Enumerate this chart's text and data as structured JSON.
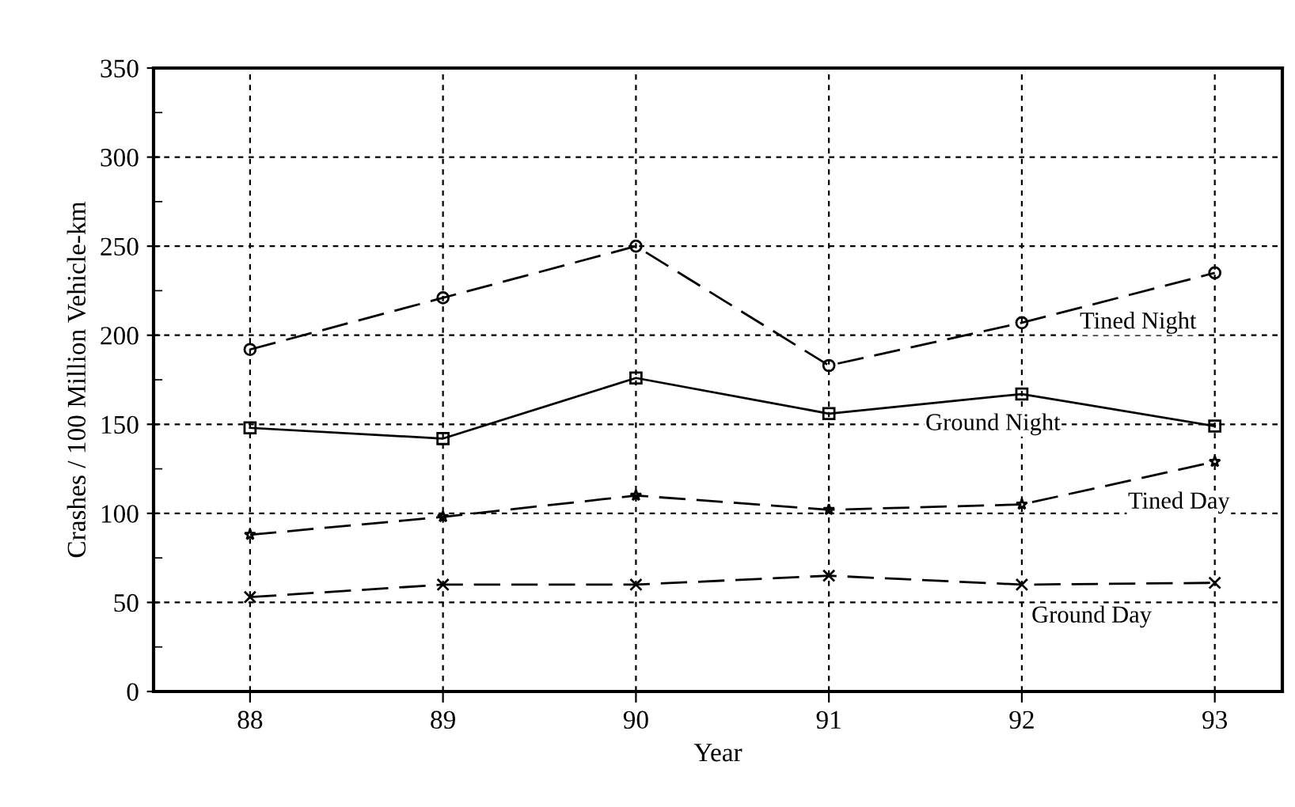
{
  "chart_data": {
    "type": "line",
    "xlabel": "Year",
    "ylabel": "Crashes / 100 Million Vehicle-km",
    "x": [
      88,
      89,
      90,
      91,
      92,
      93
    ],
    "series": [
      {
        "name": "Tined Night",
        "color": "#000000",
        "marker": "circle",
        "line_style": "dashed",
        "values": [
          192,
          221,
          250,
          183,
          207,
          235
        ]
      },
      {
        "name": "Ground Night",
        "color": "#000000",
        "marker": "square",
        "line_style": "solid",
        "values": [
          148,
          142,
          176,
          156,
          167,
          149
        ]
      },
      {
        "name": "Tined Day",
        "color": "#000000",
        "marker": "star",
        "line_style": "dashed",
        "values": [
          88,
          98,
          110,
          102,
          105,
          129
        ]
      },
      {
        "name": "Ground Day",
        "color": "#000000",
        "marker": "cross",
        "line_style": "dashed",
        "values": [
          53,
          60,
          60,
          65,
          60,
          61
        ]
      }
    ],
    "xlim": [
      87.5,
      93.35
    ],
    "xticks": [
      88,
      89,
      90,
      91,
      92,
      93
    ],
    "ylim": [
      0,
      350
    ],
    "yticks": [
      0,
      50,
      100,
      150,
      200,
      250,
      300,
      350
    ],
    "grid": true,
    "legend": false
  }
}
